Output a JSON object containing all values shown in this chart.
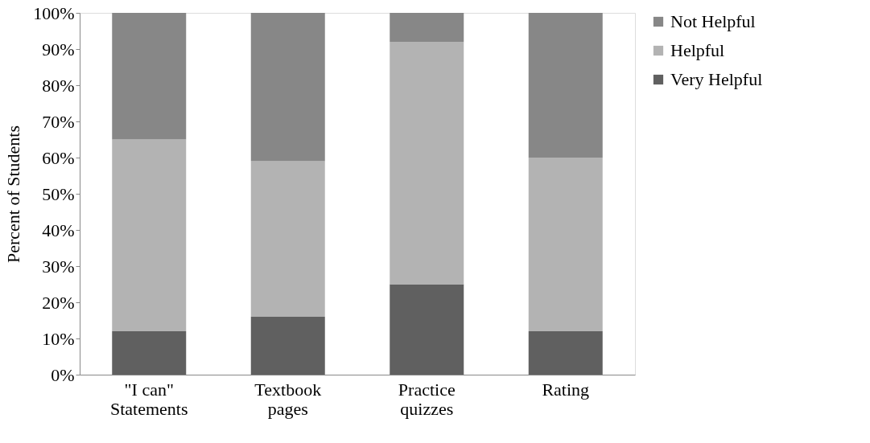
{
  "chart_data": {
    "type": "bar",
    "stacked": true,
    "ylabel": "Percent of Students",
    "categories": [
      "\"I can\"\nStatements",
      "Textbook\npages",
      "Practice\nquizzes",
      "Rating"
    ],
    "series": [
      {
        "name": "Very Helpful",
        "color": "#606060",
        "values": [
          12,
          16,
          25,
          12
        ]
      },
      {
        "name": "Helpful",
        "color": "#b3b3b3",
        "values": [
          53,
          43,
          67,
          48
        ]
      },
      {
        "name": "Not Helpful",
        "color": "#878787",
        "values": [
          35,
          41,
          8,
          40
        ]
      }
    ],
    "ylim": [
      0,
      100
    ],
    "yticks": [
      {
        "value": 0,
        "label": "0%"
      },
      {
        "value": 10,
        "label": "10%"
      },
      {
        "value": 20,
        "label": "20%"
      },
      {
        "value": 30,
        "label": "30%"
      },
      {
        "value": 40,
        "label": "40%"
      },
      {
        "value": 50,
        "label": "50%"
      },
      {
        "value": 60,
        "label": "60%"
      },
      {
        "value": 70,
        "label": "70%"
      },
      {
        "value": 80,
        "label": "80%"
      },
      {
        "value": 90,
        "label": "90%"
      },
      {
        "value": 100,
        "label": "100%"
      }
    ],
    "grid": false,
    "legend": "right"
  }
}
